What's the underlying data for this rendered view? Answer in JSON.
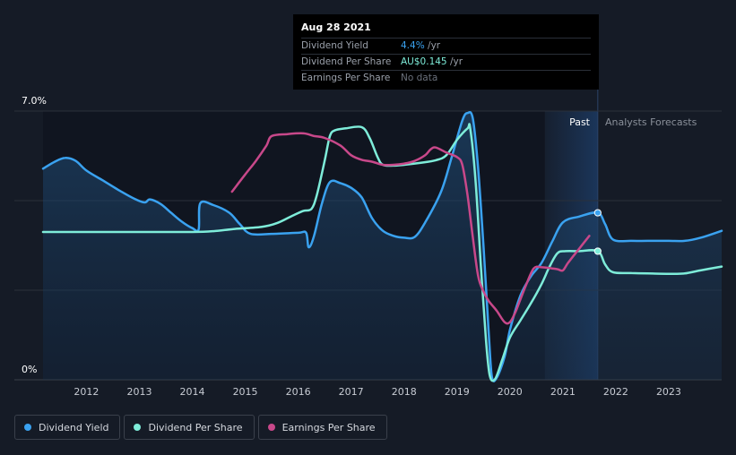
{
  "tooltip": {
    "date": "Aug 28 2021",
    "rows": [
      {
        "label": "Dividend Yield",
        "value": "4.4%",
        "unit": " /yr",
        "color": "#3aa2f0"
      },
      {
        "label": "Dividend Per Share",
        "value": "AU$0.145",
        "unit": " /yr",
        "color": "#7eecd9"
      },
      {
        "label": "Earnings Per Share",
        "value": "No data",
        "unit": "",
        "color": "#6b717c"
      }
    ]
  },
  "regions": {
    "past_label": "Past",
    "forecast_label": "Analysts Forecasts"
  },
  "legend": [
    {
      "label": "Dividend Yield",
      "color": "#3aa2f0"
    },
    {
      "label": "Dividend Per Share",
      "color": "#7eecd9"
    },
    {
      "label": "Earnings Per Share",
      "color": "#c8488a"
    }
  ],
  "chart_data": {
    "type": "line",
    "x_ticks": [
      "2012",
      "2013",
      "2014",
      "2015",
      "2016",
      "2017",
      "2018",
      "2019",
      "2020",
      "2021",
      "2022",
      "2023"
    ],
    "y_tick_labels": [
      "7.0%",
      "0%"
    ],
    "ylim": [
      0,
      7.0
    ],
    "xlim": [
      2011.18,
      2024.0
    ],
    "past_end": 2021.66,
    "forecast_band_start": 2020.66,
    "series": [
      {
        "name": "Dividend Yield",
        "color": "#3aa2f0",
        "area": true,
        "points": [
          [
            2011.18,
            5.5
          ],
          [
            2011.4,
            5.68
          ],
          [
            2011.6,
            5.78
          ],
          [
            2011.8,
            5.7
          ],
          [
            2012.0,
            5.45
          ],
          [
            2012.3,
            5.2
          ],
          [
            2012.6,
            4.95
          ],
          [
            2012.9,
            4.72
          ],
          [
            2013.1,
            4.62
          ],
          [
            2013.2,
            4.7
          ],
          [
            2013.4,
            4.58
          ],
          [
            2013.6,
            4.35
          ],
          [
            2013.8,
            4.12
          ],
          [
            2014.0,
            3.95
          ],
          [
            2014.12,
            3.92
          ],
          [
            2014.15,
            4.6
          ],
          [
            2014.4,
            4.55
          ],
          [
            2014.7,
            4.35
          ],
          [
            2014.9,
            4.05
          ],
          [
            2015.1,
            3.8
          ],
          [
            2015.5,
            3.8
          ],
          [
            2016.0,
            3.83
          ],
          [
            2016.15,
            3.83
          ],
          [
            2016.2,
            3.45
          ],
          [
            2016.3,
            3.75
          ],
          [
            2016.45,
            4.6
          ],
          [
            2016.6,
            5.15
          ],
          [
            2016.8,
            5.12
          ],
          [
            2017.0,
            5.0
          ],
          [
            2017.2,
            4.75
          ],
          [
            2017.4,
            4.2
          ],
          [
            2017.6,
            3.88
          ],
          [
            2017.8,
            3.75
          ],
          [
            2018.0,
            3.7
          ],
          [
            2018.2,
            3.72
          ],
          [
            2018.4,
            4.1
          ],
          [
            2018.7,
            4.9
          ],
          [
            2018.9,
            5.8
          ],
          [
            2019.1,
            6.75
          ],
          [
            2019.2,
            6.95
          ],
          [
            2019.3,
            6.8
          ],
          [
            2019.4,
            5.5
          ],
          [
            2019.5,
            3.5
          ],
          [
            2019.6,
            1.2
          ],
          [
            2019.66,
            0.08
          ],
          [
            2019.75,
            0.05
          ],
          [
            2019.9,
            0.6
          ],
          [
            2020.0,
            1.3
          ],
          [
            2020.2,
            2.2
          ],
          [
            2020.4,
            2.7
          ],
          [
            2020.6,
            3.05
          ],
          [
            2020.8,
            3.6
          ],
          [
            2021.0,
            4.1
          ],
          [
            2021.3,
            4.25
          ],
          [
            2021.66,
            4.35
          ],
          [
            2021.8,
            4.05
          ],
          [
            2021.95,
            3.65
          ],
          [
            2022.3,
            3.62
          ],
          [
            2022.6,
            3.62
          ],
          [
            2023.0,
            3.62
          ],
          [
            2023.3,
            3.62
          ],
          [
            2023.6,
            3.7
          ],
          [
            2024.0,
            3.88
          ]
        ],
        "marker": [
          2021.66,
          4.35
        ]
      },
      {
        "name": "Dividend Per Share",
        "color": "#7eecd9",
        "area": false,
        "points": [
          [
            2011.18,
            3.85
          ],
          [
            2012.0,
            3.85
          ],
          [
            2013.0,
            3.85
          ],
          [
            2014.0,
            3.85
          ],
          [
            2014.4,
            3.87
          ],
          [
            2014.8,
            3.93
          ],
          [
            2015.3,
            3.98
          ],
          [
            2015.6,
            4.08
          ],
          [
            2015.9,
            4.28
          ],
          [
            2016.1,
            4.4
          ],
          [
            2016.25,
            4.45
          ],
          [
            2016.35,
            4.8
          ],
          [
            2016.5,
            5.7
          ],
          [
            2016.6,
            6.35
          ],
          [
            2016.7,
            6.5
          ],
          [
            2016.9,
            6.55
          ],
          [
            2017.2,
            6.58
          ],
          [
            2017.35,
            6.3
          ],
          [
            2017.5,
            5.8
          ],
          [
            2017.6,
            5.6
          ],
          [
            2017.8,
            5.58
          ],
          [
            2018.0,
            5.6
          ],
          [
            2018.3,
            5.65
          ],
          [
            2018.6,
            5.72
          ],
          [
            2018.8,
            5.85
          ],
          [
            2019.0,
            6.25
          ],
          [
            2019.2,
            6.55
          ],
          [
            2019.25,
            6.55
          ],
          [
            2019.35,
            5.2
          ],
          [
            2019.45,
            3.0
          ],
          [
            2019.55,
            1.0
          ],
          [
            2019.62,
            0.1
          ],
          [
            2019.72,
            0.02
          ],
          [
            2019.85,
            0.5
          ],
          [
            2020.0,
            1.1
          ],
          [
            2020.2,
            1.55
          ],
          [
            2020.4,
            2.0
          ],
          [
            2020.6,
            2.5
          ],
          [
            2020.75,
            2.95
          ],
          [
            2020.9,
            3.3
          ],
          [
            2021.05,
            3.35
          ],
          [
            2021.3,
            3.35
          ],
          [
            2021.66,
            3.35
          ],
          [
            2021.8,
            3.0
          ],
          [
            2021.95,
            2.8
          ],
          [
            2022.3,
            2.78
          ],
          [
            2022.6,
            2.77
          ],
          [
            2023.0,
            2.76
          ],
          [
            2023.3,
            2.77
          ],
          [
            2023.6,
            2.85
          ],
          [
            2024.0,
            2.95
          ]
        ],
        "marker": [
          2021.66,
          3.35
        ]
      },
      {
        "name": "Earnings Per Share",
        "color": "#c8488a",
        "area": false,
        "points": [
          [
            2014.75,
            4.9
          ],
          [
            2015.0,
            5.35
          ],
          [
            2015.2,
            5.7
          ],
          [
            2015.4,
            6.1
          ],
          [
            2015.5,
            6.35
          ],
          [
            2015.8,
            6.4
          ],
          [
            2016.1,
            6.42
          ],
          [
            2016.3,
            6.35
          ],
          [
            2016.5,
            6.3
          ],
          [
            2016.8,
            6.1
          ],
          [
            2017.0,
            5.85
          ],
          [
            2017.2,
            5.73
          ],
          [
            2017.4,
            5.68
          ],
          [
            2017.6,
            5.6
          ],
          [
            2017.8,
            5.6
          ],
          [
            2018.0,
            5.63
          ],
          [
            2018.2,
            5.7
          ],
          [
            2018.4,
            5.85
          ],
          [
            2018.5,
            6.0
          ],
          [
            2018.6,
            6.05
          ],
          [
            2018.8,
            5.92
          ],
          [
            2019.0,
            5.8
          ],
          [
            2019.1,
            5.6
          ],
          [
            2019.2,
            4.8
          ],
          [
            2019.3,
            3.7
          ],
          [
            2019.4,
            2.7
          ],
          [
            2019.5,
            2.3
          ],
          [
            2019.6,
            2.05
          ],
          [
            2019.75,
            1.8
          ],
          [
            2019.9,
            1.5
          ],
          [
            2020.0,
            1.5
          ],
          [
            2020.1,
            1.75
          ],
          [
            2020.2,
            2.1
          ],
          [
            2020.3,
            2.45
          ],
          [
            2020.45,
            2.9
          ],
          [
            2020.6,
            2.93
          ],
          [
            2020.8,
            2.9
          ],
          [
            2020.9,
            2.88
          ],
          [
            2021.0,
            2.85
          ],
          [
            2021.1,
            3.05
          ],
          [
            2021.3,
            3.4
          ],
          [
            2021.5,
            3.75
          ]
        ]
      }
    ]
  }
}
